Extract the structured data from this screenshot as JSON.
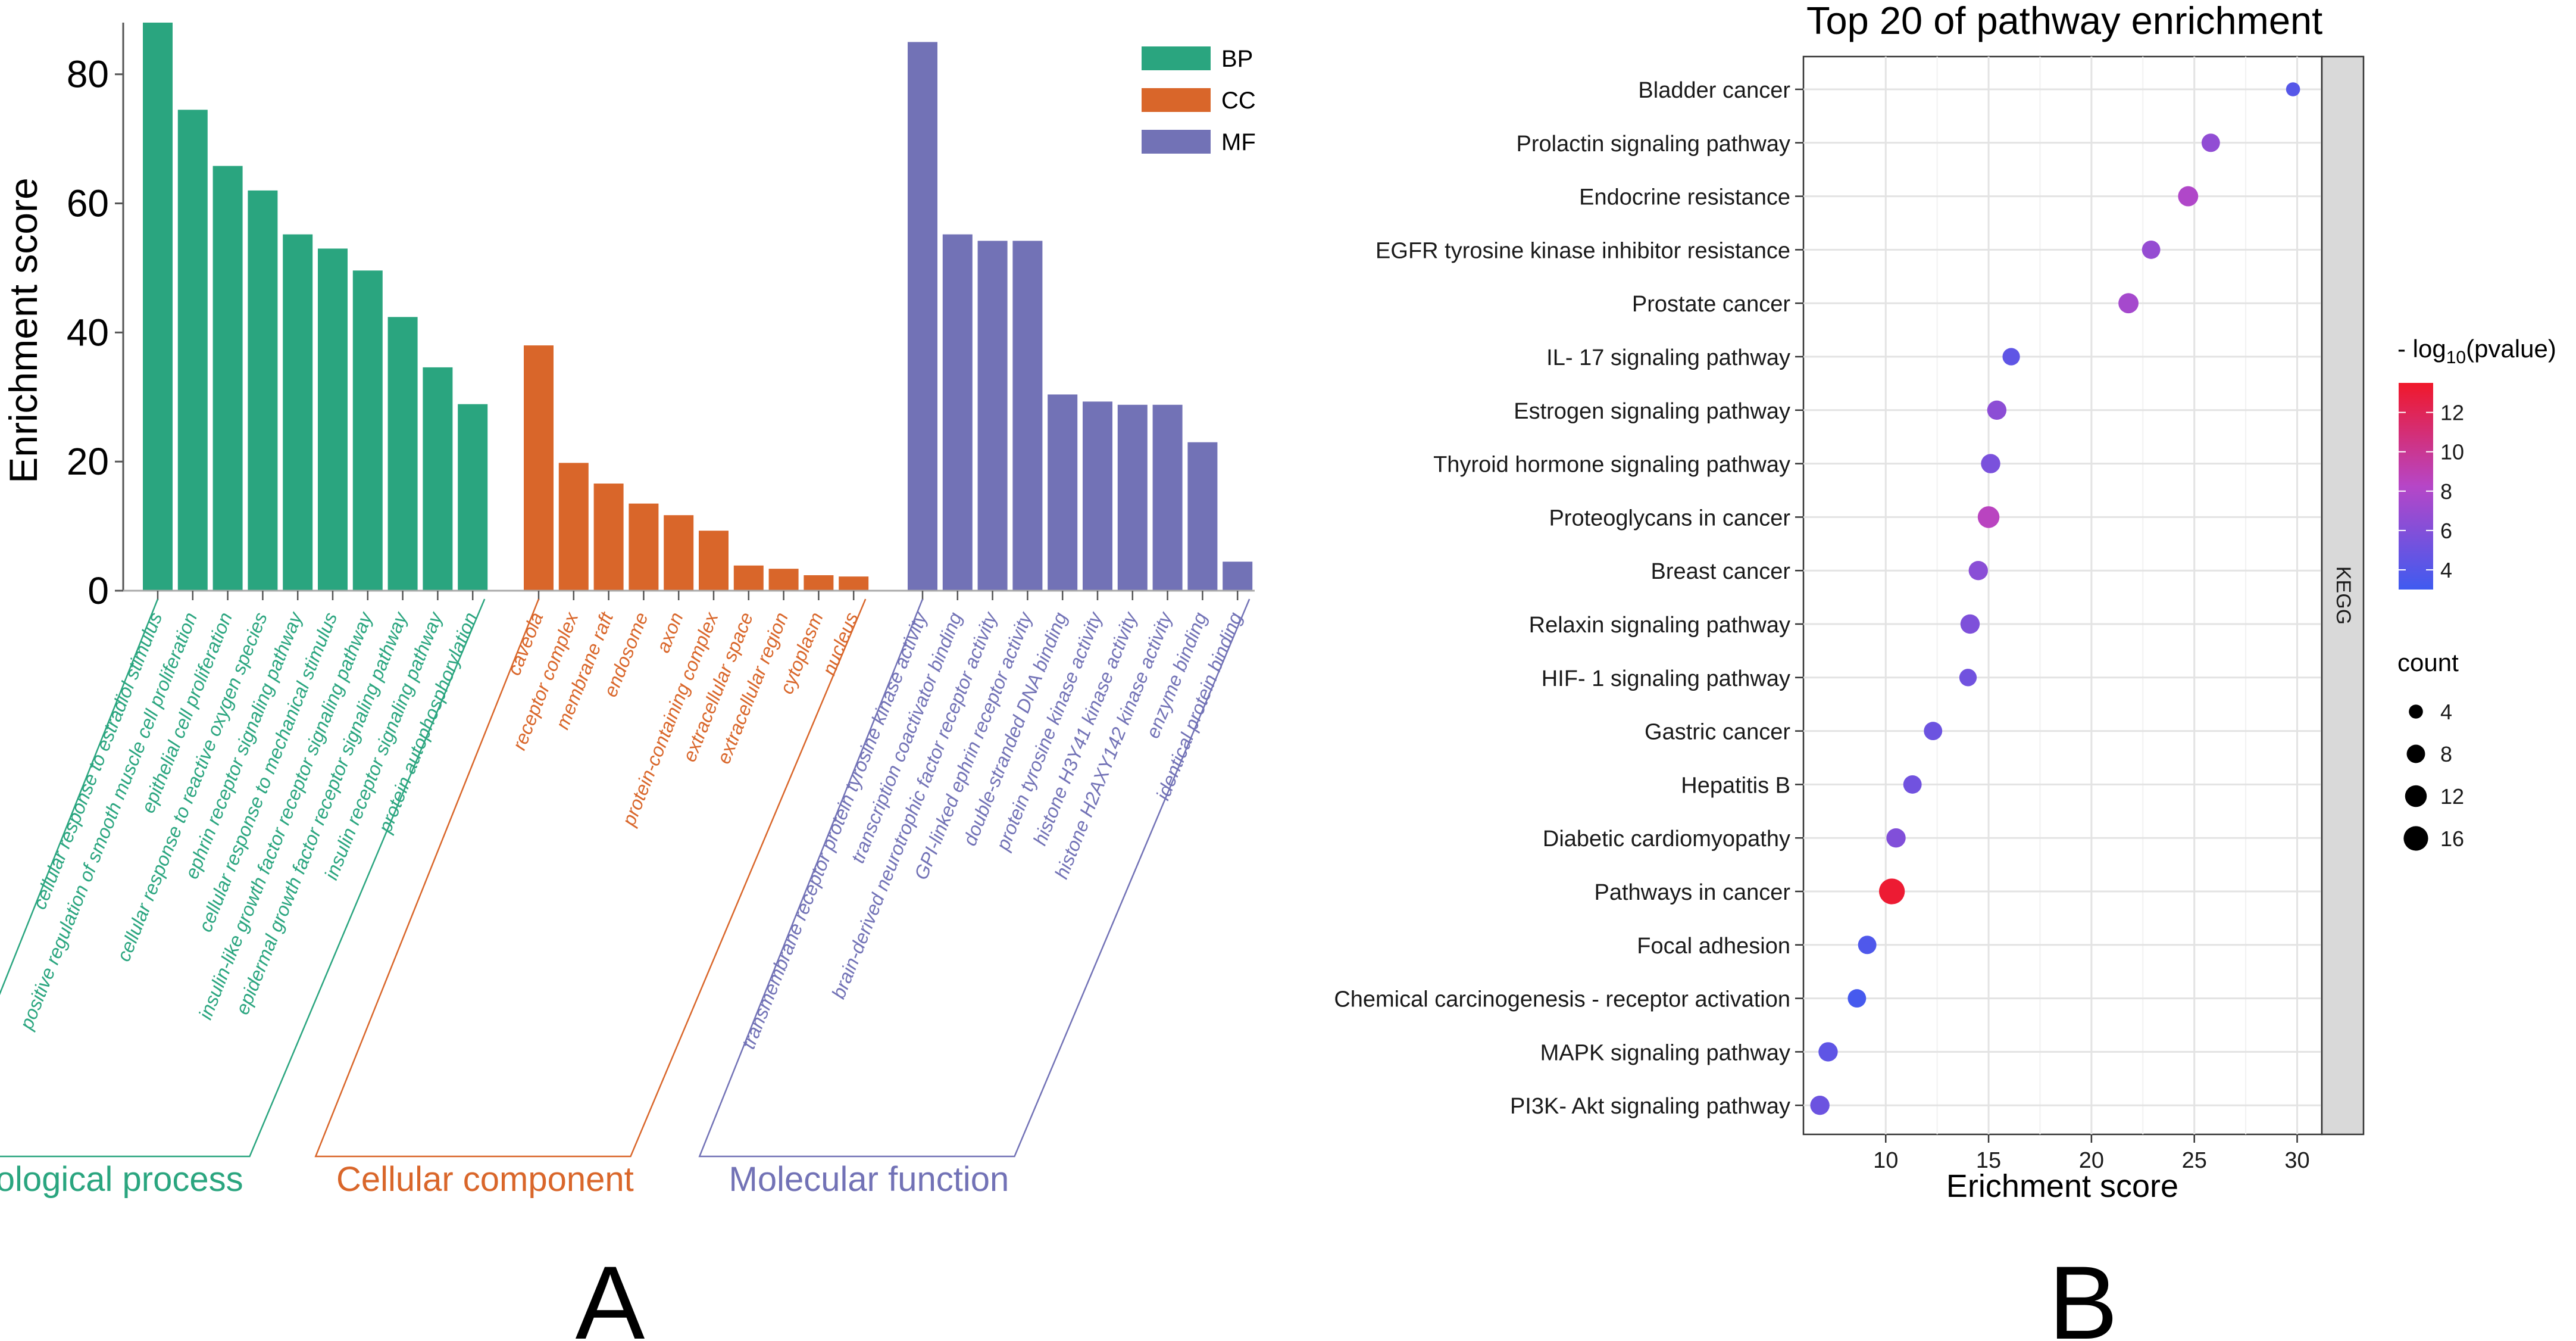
{
  "chart_data": [
    {
      "type": "bar",
      "panel_label": "A",
      "ylabel": "Enrichment score",
      "ylim": [
        0,
        88
      ],
      "yticks": [
        0,
        20,
        40,
        60,
        80
      ],
      "legend": [
        {
          "key": "BP",
          "color": "#2aa57f"
        },
        {
          "key": "CC",
          "color": "#d9662a"
        },
        {
          "key": "MF",
          "color": "#7272b6"
        }
      ],
      "groups": [
        {
          "key": "BP",
          "name": "Biological process",
          "color": "#2aa57f",
          "categories": [
            "cellular response to estradiol stimulus",
            "positive regulation of smooth muscle cell proliferation",
            "epithelial cell proliferation",
            "cellular response to reactive oxygen species",
            "ephrin receptor signaling pathway",
            "cellular response to mechanical stimulus",
            "insulin-like growth factor receptor signaling pathway",
            "epidermal growth factor receptor signaling pathway",
            "insulin receptor signaling pathway",
            "protein autophosphorylation"
          ],
          "values": [
            88,
            74.5,
            65.8,
            62,
            55.2,
            53,
            49.6,
            42.4,
            34.6,
            28.9
          ]
        },
        {
          "key": "CC",
          "name": "Cellular component",
          "color": "#d9662a",
          "categories": [
            "caveola",
            "receptor complex",
            "membrane raft",
            "endosome",
            "axon",
            "protein-containing complex",
            "extracellular space",
            "extracellular region",
            "cytoplasm",
            "nucleus"
          ],
          "values": [
            38,
            19.8,
            16.6,
            13.5,
            11.7,
            9.3,
            3.9,
            3.4,
            2.4,
            2.2
          ]
        },
        {
          "key": "MF",
          "name": "Molecular function",
          "color": "#7272b6",
          "categories": [
            "transmembrane receptor protein tyrosine kinase activity",
            "transcription coactivator binding",
            "brain-derived neurotrophic factor receptor activity",
            "GPI-linked ephrin receptor activity",
            "double-stranded DNA binding",
            "protein tyrosine kinase activity",
            "histone H3Y41 kinase activity",
            "histone H2AXY142 kinase activity",
            "enzyme binding",
            "identical protein binding"
          ],
          "values": [
            85,
            55.2,
            54.2,
            54.2,
            30.4,
            29.3,
            28.8,
            28.8,
            23,
            4.5
          ]
        }
      ]
    },
    {
      "type": "scatter",
      "panel_label": "B",
      "title": "Top 20 of pathway enrichment",
      "xlabel": "Erichment score",
      "xlim": [
        6,
        31.2
      ],
      "xticks": [
        10,
        15,
        20,
        25,
        30
      ],
      "facet_label": "KEGG",
      "color_legend": {
        "title": "- log10(pvalue)",
        "title_main": "- log",
        "title_sub": "10",
        "title_rest": "(pvalue)",
        "min": 3,
        "max": 13.5,
        "ticks": [
          4,
          6,
          8,
          10,
          12
        ],
        "low_color": "#3f5bf0",
        "high_color": "#f0182a"
      },
      "size_legend": {
        "title": "count",
        "values": [
          4,
          8,
          12,
          16
        ]
      },
      "points": [
        {
          "pathway": "Bladder cancer",
          "score": 29.8,
          "neglog10p": 4,
          "count": 4
        },
        {
          "pathway": "Prolactin signaling pathway",
          "score": 25.8,
          "neglog10p": 6.6,
          "count": 8
        },
        {
          "pathway": "Endocrine resistance",
          "score": 24.7,
          "neglog10p": 8,
          "count": 10
        },
        {
          "pathway": "EGFR tyrosine kinase inhibitor resistance",
          "score": 22.9,
          "neglog10p": 6.8,
          "count": 8
        },
        {
          "pathway": "Prostate cancer",
          "score": 21.8,
          "neglog10p": 7.5,
          "count": 10
        },
        {
          "pathway": "IL- 17 signaling pathway",
          "score": 16.1,
          "neglog10p": 4.4,
          "count": 7
        },
        {
          "pathway": "Estrogen signaling pathway",
          "score": 15.4,
          "neglog10p": 6.4,
          "count": 9
        },
        {
          "pathway": "Thyroid hormone signaling pathway",
          "score": 15.1,
          "neglog10p": 5.6,
          "count": 9
        },
        {
          "pathway": "Proteoglycans in cancer",
          "score": 15,
          "neglog10p": 8.5,
          "count": 12
        },
        {
          "pathway": "Breast cancer",
          "score": 14.5,
          "neglog10p": 6.3,
          "count": 9
        },
        {
          "pathway": "Relaxin signaling pathway",
          "score": 14.1,
          "neglog10p": 5.8,
          "count": 9
        },
        {
          "pathway": "HIF- 1 signaling pathway",
          "score": 14,
          "neglog10p": 5.2,
          "count": 7
        },
        {
          "pathway": "Gastric cancer",
          "score": 12.3,
          "neglog10p": 5,
          "count": 8
        },
        {
          "pathway": "Hepatitis B",
          "score": 11.3,
          "neglog10p": 5.2,
          "count": 8
        },
        {
          "pathway": "Diabetic cardiomyopathy",
          "score": 10.5,
          "neglog10p": 5.9,
          "count": 9
        },
        {
          "pathway": "Pathways in cancer",
          "score": 10.3,
          "neglog10p": 13.2,
          "count": 18
        },
        {
          "pathway": "Focal adhesion",
          "score": 9.1,
          "neglog10p": 3.7,
          "count": 8
        },
        {
          "pathway": "Chemical carcinogenesis -  receptor activation",
          "score": 8.6,
          "neglog10p": 3.3,
          "count": 8
        },
        {
          "pathway": "MAPK signaling pathway",
          "score": 7.2,
          "neglog10p": 4.4,
          "count": 9
        },
        {
          "pathway": "PI3K- Akt signaling pathway",
          "score": 6.8,
          "neglog10p": 5,
          "count": 9
        }
      ]
    }
  ]
}
